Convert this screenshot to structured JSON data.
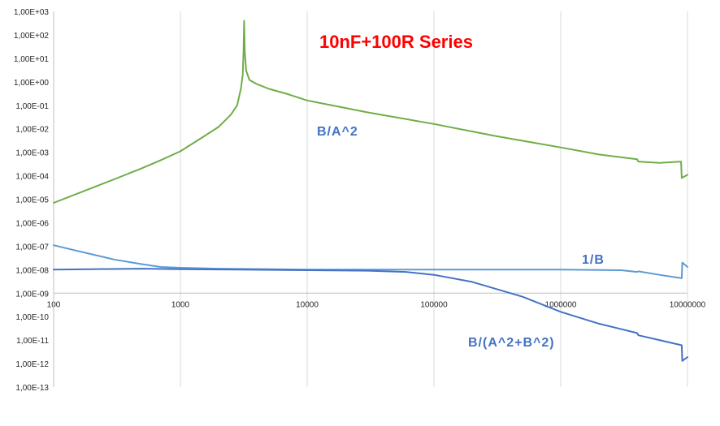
{
  "chart_data": {
    "type": "line",
    "title": "10nF+100R Series",
    "xlabel": "",
    "ylabel": "",
    "x_scale": "log",
    "y_scale": "log",
    "xlim": [
      100,
      10000000
    ],
    "ylim": [
      1e-13,
      1000
    ],
    "x_tick_labels": [
      "100",
      "1000",
      "10000",
      "100000",
      "1000000",
      "10000000"
    ],
    "y_tick_labels": [
      "1,00E+03",
      "1,00E+02",
      "1,00E+01",
      "1,00E+00",
      "1,00E-01",
      "1,00E-02",
      "1,00E-03",
      "1,00E-04",
      "1,00E-05",
      "1,00E-06",
      "1,00E-07",
      "1,00E-08",
      "1,00E-09",
      "1,00E-10",
      "1,00E-11",
      "1,00E-12",
      "1,00E-13"
    ],
    "grid": "vertical",
    "legend": "none",
    "series": [
      {
        "name": "B/A^2",
        "color": "#70ad47",
        "x": [
          100,
          200,
          300,
          500,
          700,
          1000,
          1500,
          2000,
          2500,
          2800,
          3000,
          3100,
          3150,
          3183,
          3220,
          3300,
          3500,
          4000,
          5000,
          7000,
          10000,
          30000,
          100000,
          300000,
          1000000,
          2000000,
          4000000,
          4100000,
          6000000,
          8900000,
          9000000,
          10000000
        ],
        "y": [
          7e-06,
          3e-05,
          7e-05,
          0.00021,
          0.00046,
          0.0011,
          0.0044,
          0.012,
          0.04,
          0.1,
          0.5,
          2,
          20,
          400,
          20,
          3,
          1.2,
          0.8,
          0.5,
          0.3,
          0.16,
          0.05,
          0.016,
          0.005,
          0.0016,
          0.0008,
          0.0005,
          0.0004,
          0.00035,
          0.0004,
          8e-05,
          0.00011
        ]
      },
      {
        "name": "1/B",
        "color": "#5b9bd5",
        "x": [
          100,
          150,
          200,
          300,
          500,
          700,
          1000,
          2000,
          5000,
          10000,
          100000,
          1000000,
          3000000,
          4000000,
          4100000,
          6000000,
          9000000,
          9100000,
          10000000
        ],
        "y": [
          1.1e-07,
          6.5e-08,
          4.5e-08,
          2.7e-08,
          1.7e-08,
          1.3e-08,
          1.2e-08,
          1.1e-08,
          1.05e-08,
          1e-08,
          1e-08,
          1e-08,
          9.5e-09,
          8e-09,
          8.5e-09,
          6e-09,
          4.3e-09,
          2e-08,
          1.3e-08
        ]
      },
      {
        "name": "B/(A^2+B^2)",
        "color": "#4472c4",
        "x": [
          100,
          200,
          500,
          1000,
          3000,
          10000,
          30000,
          60000,
          100000,
          200000,
          500000,
          1000000,
          2000000,
          4000000,
          4100000,
          6000000,
          9000000,
          9100000,
          10000000
        ],
        "y": [
          1e-08,
          1.05e-08,
          1.1e-08,
          1.05e-08,
          1e-08,
          9.5e-09,
          9e-09,
          8e-09,
          6e-09,
          3e-09,
          7e-10,
          1.6e-10,
          5e-11,
          2e-11,
          1.6e-11,
          1e-11,
          6e-12,
          1.3e-12,
          1.9e-12
        ]
      }
    ],
    "annotations": [
      {
        "text": "10nF+100R Series",
        "color": "#ff0000"
      },
      {
        "text": "B/A^2",
        "color": "#4472c4"
      },
      {
        "text": "1/B",
        "color": "#4472c4"
      },
      {
        "text": "B/(A^2+B^2)",
        "color": "#4472c4"
      }
    ]
  }
}
